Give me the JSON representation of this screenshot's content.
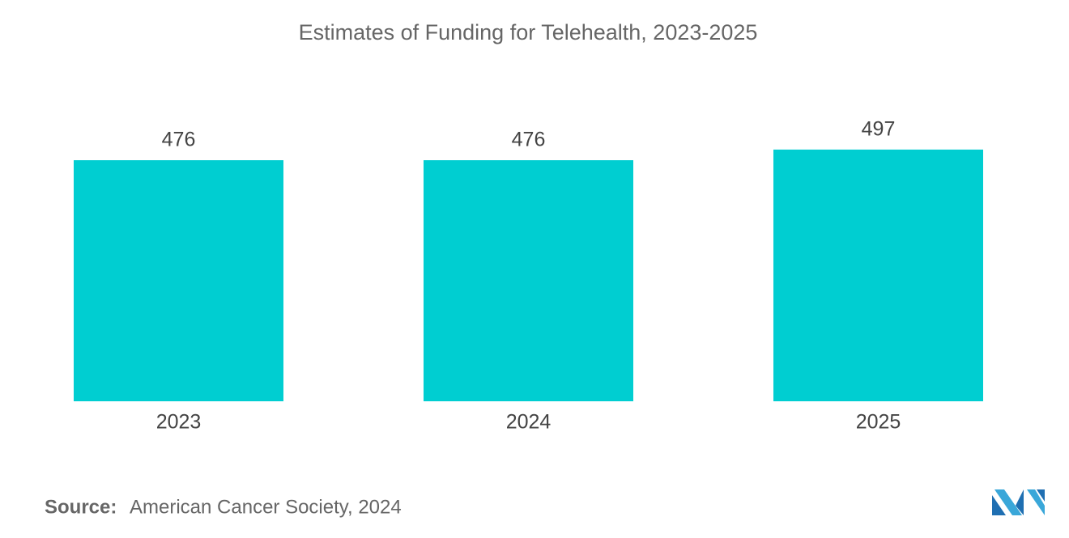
{
  "chart_data": {
    "type": "bar",
    "title": "Estimates of Funding for Telehealth, 2023-2025",
    "categories": [
      "2023",
      "2024",
      "2025"
    ],
    "values": [
      476,
      476,
      497
    ],
    "color": "#00ced1",
    "source_label": "Source:",
    "source": "American Cancer Society, 2024"
  }
}
